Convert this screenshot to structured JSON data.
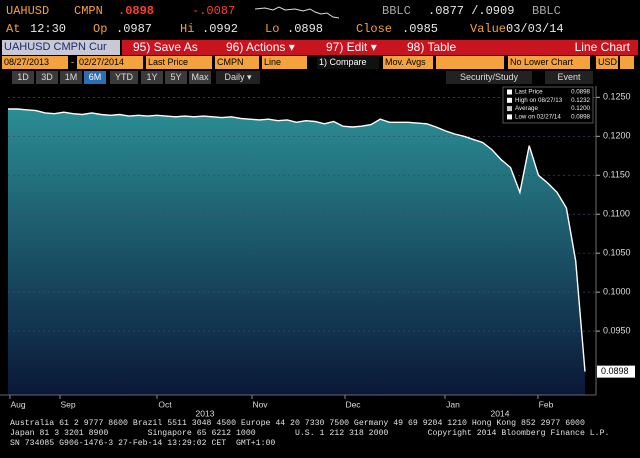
{
  "header": {
    "ticker": "UAHUSD",
    "source": "CMPN",
    "last": ".0898",
    "change": "-.0087",
    "bid_source": "BBLC",
    "bid_ask": ".0877 /.0909",
    "ask_source": "BBLC",
    "stats": [
      {
        "label": "At",
        "value": "12:30"
      },
      {
        "label": "Op",
        "value": ".0987"
      },
      {
        "label": "Hi",
        "value": ".0992"
      },
      {
        "label": "Lo",
        "value": ".0898"
      },
      {
        "label": "Close",
        "value": ".0985"
      },
      {
        "label": "Value",
        "value": "03/03/14"
      }
    ]
  },
  "toolbar": {
    "security": "UAHUSD CMPN Cur",
    "buttons": [
      "95) Save As",
      "96) Actions ▾",
      "97) Edit ▾",
      "98) Table"
    ],
    "chart_type": "Line Chart"
  },
  "settings": {
    "start": "08/27/2013",
    "dash": "-",
    "end": "02/27/2014",
    "field": "Last Price",
    "source": "CMPN",
    "style": "Line",
    "compare": "1) Compare",
    "mov_avgs": "Mov. Avgs",
    "lower_chart": "No Lower Chart",
    "currency": "USD"
  },
  "periods": [
    "1D",
    "3D",
    "1M",
    "6M",
    "YTD",
    "1Y",
    "5Y",
    "Max"
  ],
  "active_period": "6M",
  "frequency": "Daily ▾",
  "tools": [
    "Security/Study",
    "Event"
  ],
  "legend": [
    {
      "label": "Last Price",
      "value": "0.0898"
    },
    {
      "label": "High on 08/27/13",
      "value": "0.1232"
    },
    {
      "label": "Average",
      "value": "0.1200"
    },
    {
      "label": "Low on 02/27/14",
      "value": "0.0898"
    }
  ],
  "chart_data": {
    "type": "area",
    "color": "#ffffff",
    "fill_top": "#2b8d94",
    "fill_bottom": "#0a1838",
    "months": [
      "Aug",
      "Sep",
      "Oct",
      "Nov",
      "Dec",
      "Jan",
      "Feb"
    ],
    "years": [
      "2013",
      "2014"
    ],
    "values": [
      0.1235,
      0.1235,
      0.1234,
      0.1233,
      0.123,
      0.1229,
      0.1231,
      0.1229,
      0.1228,
      0.123,
      0.1228,
      0.1227,
      0.1228,
      0.1226,
      0.1227,
      0.1226,
      0.1227,
      0.1226,
      0.1225,
      0.1226,
      0.1225,
      0.1226,
      0.1225,
      0.1224,
      0.1225,
      0.1223,
      0.1222,
      0.1221,
      0.1222,
      0.122,
      0.1221,
      0.1218,
      0.122,
      0.1219,
      0.1216,
      0.1219,
      0.1213,
      0.1212,
      0.1213,
      0.1215,
      0.1222,
      0.1218,
      0.1218,
      0.1218,
      0.1217,
      0.1216,
      0.1212,
      0.1207,
      0.1203,
      0.12,
      0.1196,
      0.1192,
      0.1183,
      0.117,
      0.116,
      0.1128,
      0.1188,
      0.115,
      0.114,
      0.1128,
      0.1108,
      0.104,
      0.0898
    ],
    "last_value_label": "0.0898",
    "ylim": [
      0.0868,
      0.1262
    ],
    "yticks": [
      {
        "value": 0.095,
        "label": "0.0950"
      },
      {
        "value": 0.1,
        "label": "0.1000"
      },
      {
        "value": 0.105,
        "label": "0.1050"
      },
      {
        "value": 0.11,
        "label": "0.1100"
      },
      {
        "value": 0.115,
        "label": "0.1150"
      },
      {
        "value": 0.12,
        "label": "0.1200"
      },
      {
        "value": 0.125,
        "label": "0.1250"
      }
    ],
    "grid": true
  },
  "footer": [
    "Australia 61 2 9777 8600 Brazil 5511 3048 4500 Europe 44 20 7330 7500 Germany 49 69 9204 1210 Hong Kong 852 2977 6000",
    "Japan 81 3 3201 8900        Singapore 65 6212 1000        U.S. 1 212 318 2000        Copyright 2014 Bloomberg Finance L.P.",
    "SN 734085 G906-1476-3 27-Feb-14 13:29:02 CET  GMT+1:00"
  ]
}
